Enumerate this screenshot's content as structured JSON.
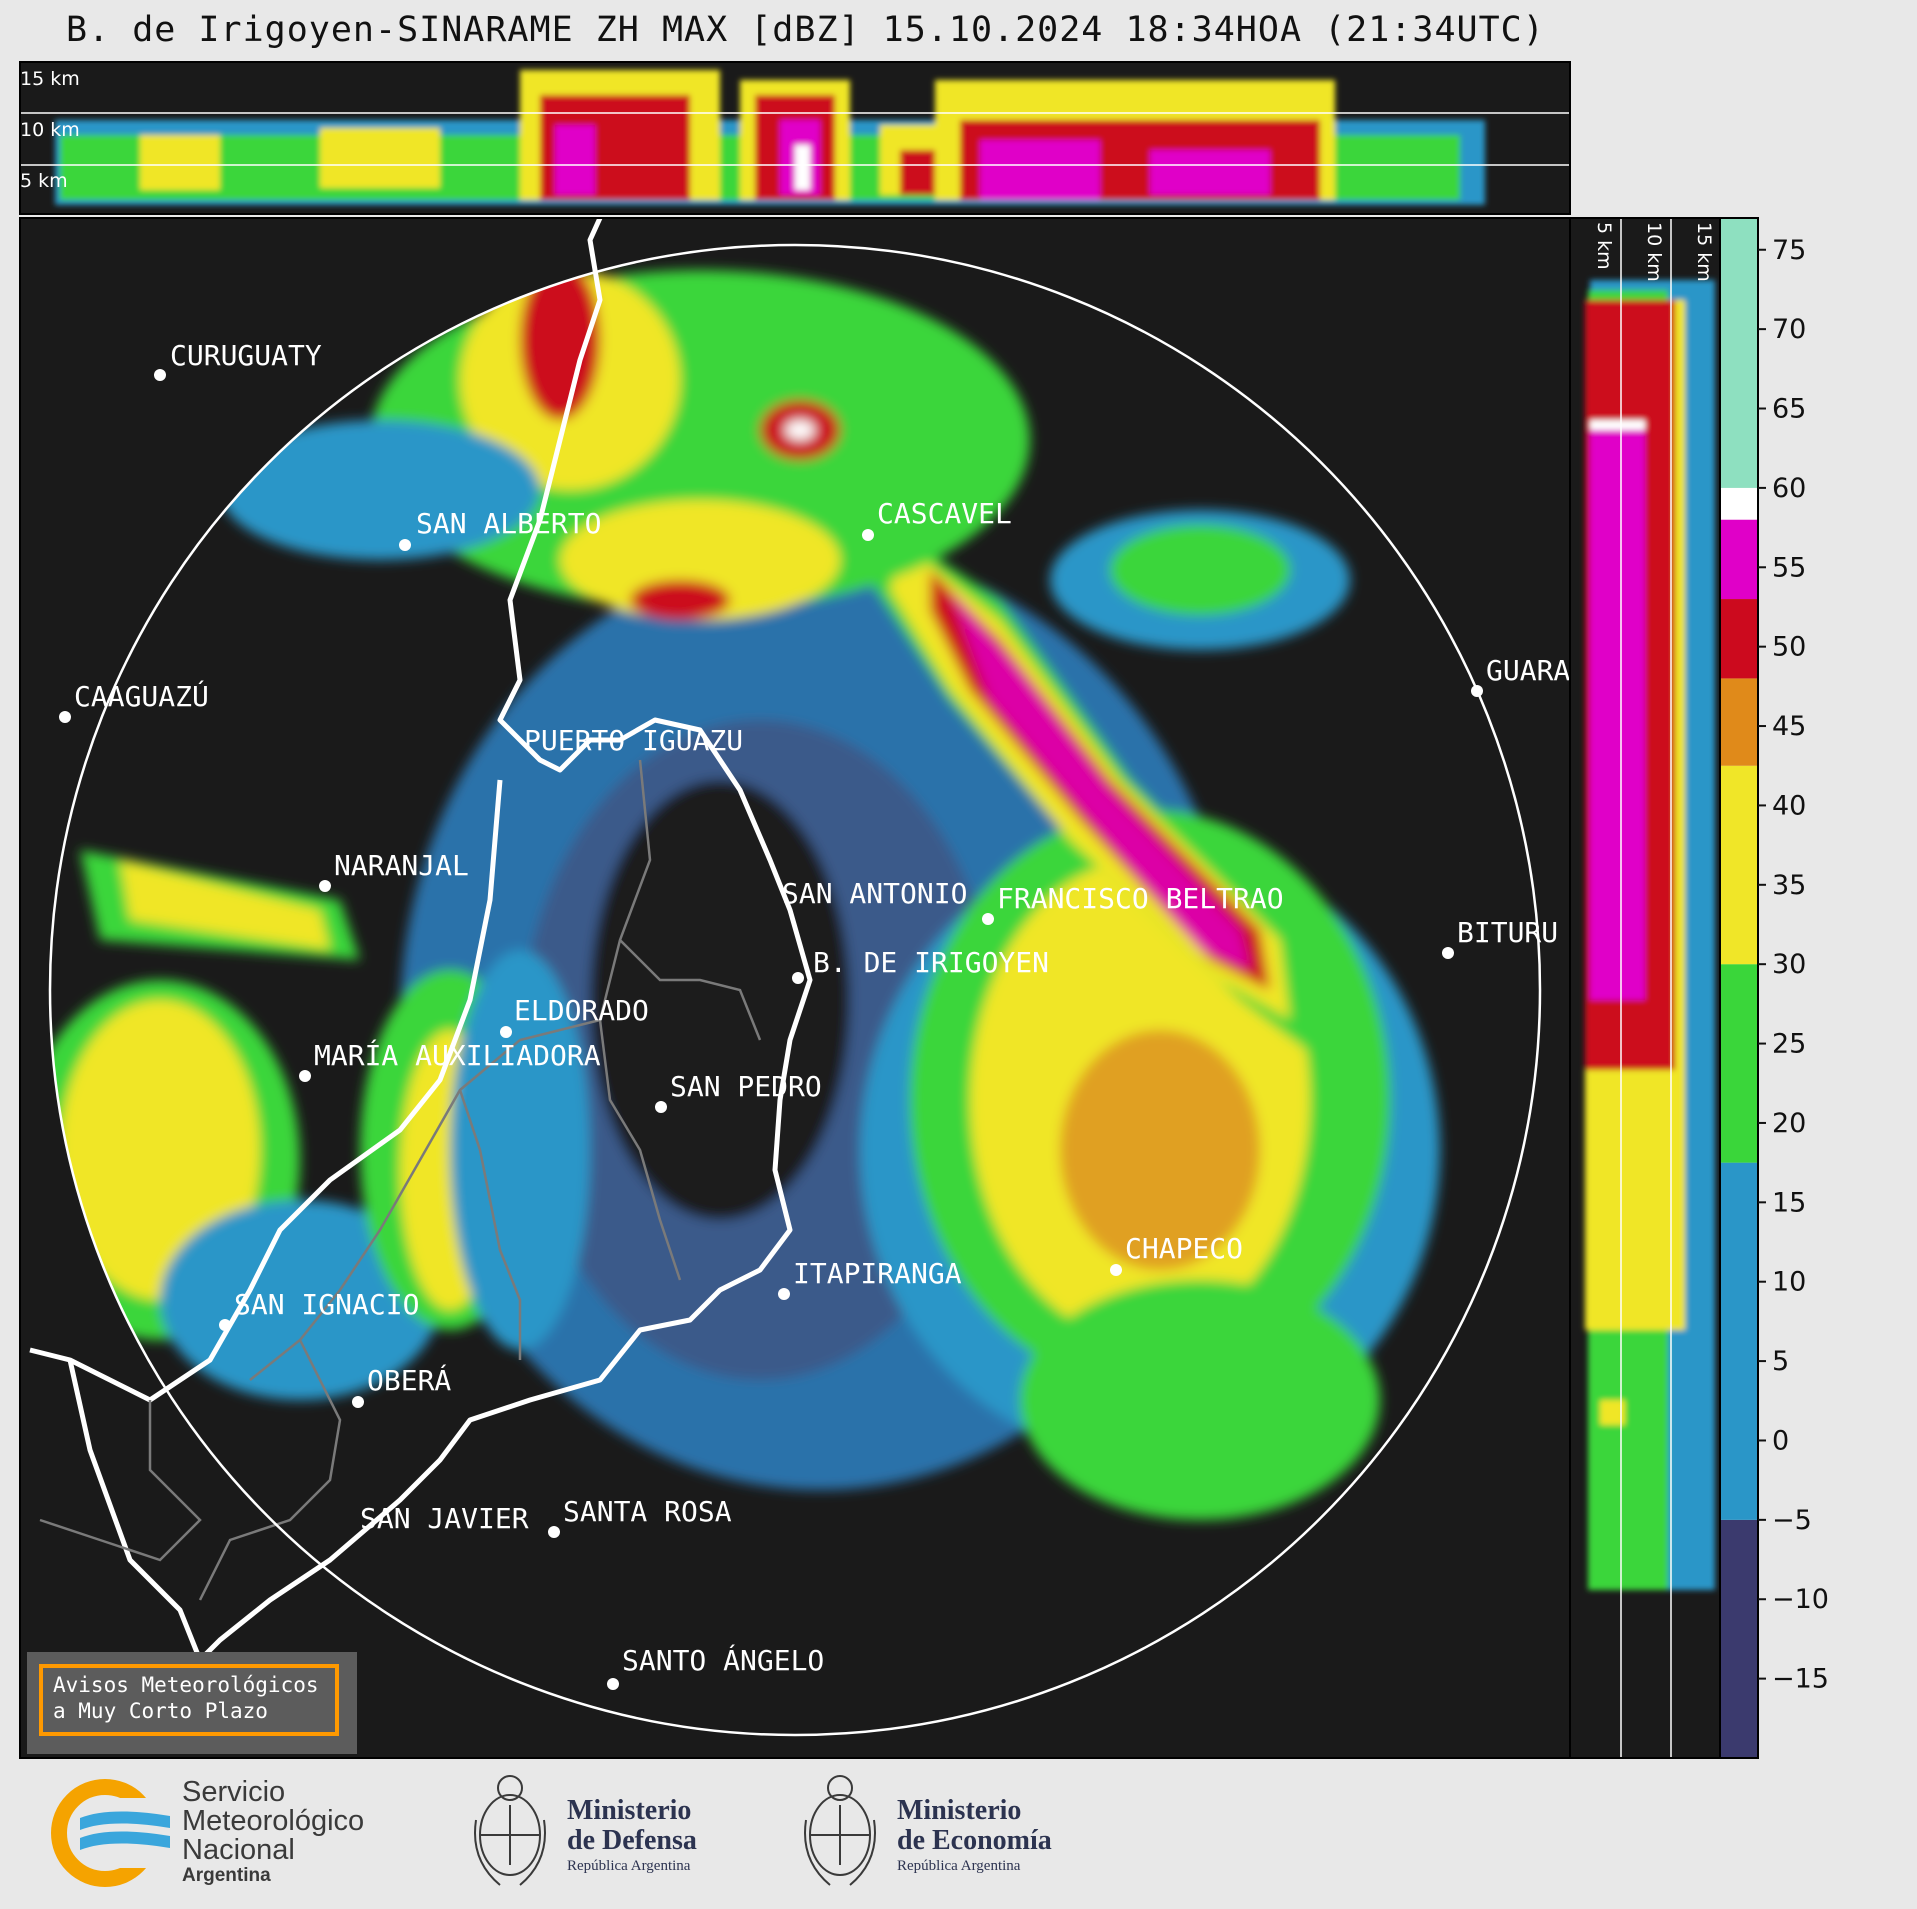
{
  "title": "B. de Irigoyen-SINARAME ZH MAX [dBZ] 15.10.2024 18:34HOA (21:34UTC)",
  "top_panel_heights": [
    "15 km",
    "10 km",
    "5 km"
  ],
  "side_panel_heights": [
    "5 km",
    "10 km",
    "15 km"
  ],
  "colorbar": {
    "ticks": [
      "75",
      "70",
      "65",
      "60",
      "55",
      "50",
      "45",
      "40",
      "35",
      "30",
      "25",
      "20",
      "15",
      "10",
      "5",
      "0",
      "−5",
      "−10",
      "−15"
    ],
    "range": [
      -20,
      77
    ],
    "colors": {
      "low": "#3b3a6e",
      "blue": "#2a96c8",
      "green": "#3ad63a",
      "yellow": "#f0e628",
      "orange": "#e08a1a",
      "red": "#cc0a1e",
      "magenta": "#e000c8",
      "white": "#ffffff",
      "mint": "#8ee0c0"
    }
  },
  "cities": [
    {
      "name": "CURUGUATY"
    },
    {
      "name": "SAN ALBERTO"
    },
    {
      "name": "CASCAVEL"
    },
    {
      "name": "CAAGUAZÚ"
    },
    {
      "name": "GUARA"
    },
    {
      "name": "PUERTO IGUAZU"
    },
    {
      "name": "NARANJAL"
    },
    {
      "name": "SAN ANTONIO"
    },
    {
      "name": "FRANCISCO BELTRAO"
    },
    {
      "name": "BITURU"
    },
    {
      "name": "B. DE IRIGOYEN"
    },
    {
      "name": "ELDORADO"
    },
    {
      "name": "MARÍA AUXILIADORA"
    },
    {
      "name": "SAN PEDRO"
    },
    {
      "name": "CHAPECO"
    },
    {
      "name": "ITAPIRANGA"
    },
    {
      "name": "SAN IGNACIO"
    },
    {
      "name": "OBERÁ"
    },
    {
      "name": "SAN JAVIER"
    },
    {
      "name": "SANTA ROSA"
    },
    {
      "name": "SANTO ÁNGELO"
    }
  ],
  "warning": {
    "line1": "Avisos Meteorológicos",
    "line2": "a Muy Corto Plazo"
  },
  "logos": {
    "smn_line1": "Servicio",
    "smn_line2": "Meteorológico",
    "smn_line3": "Nacional",
    "smn_line4": "Argentina",
    "defensa_line1": "Ministerio",
    "defensa_line2": "de Defensa",
    "defensa_line3": "República Argentina",
    "economia_line1": "Ministerio",
    "economia_line2": "de Economía",
    "economia_line3": "República Argentina"
  }
}
